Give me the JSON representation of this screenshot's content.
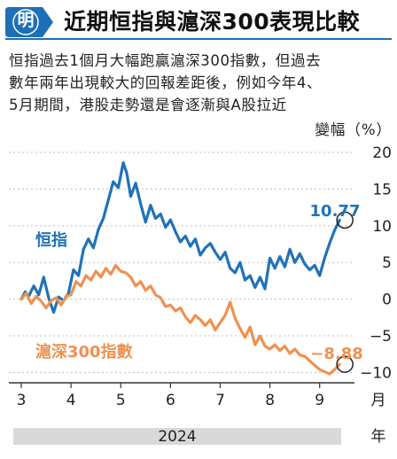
{
  "header": {
    "badge": "明",
    "title": "近期恒指與滬深300表現比較",
    "accent_color": "#1e6fb8"
  },
  "description": [
    "恒指過去1個月大幅跑贏滬深300指數，但過去",
    "數年兩年出現較大的回報差距後，例如今年4、",
    "5月期間，港股走勢還是會逐漸與A股拉近"
  ],
  "chart_data": {
    "type": "line",
    "ylabel": "變幅（%）",
    "ylim": [
      -12,
      20
    ],
    "yticks": [
      "20",
      "15",
      "10",
      "5",
      "0",
      "−5",
      "−10"
    ],
    "ytick_values": [
      20,
      15,
      10,
      5,
      0,
      -5,
      -10
    ],
    "xlabel": "月",
    "x_ticks": [
      "3",
      "4",
      "5",
      "6",
      "7",
      "8",
      "9"
    ],
    "x_tick_months": [
      3,
      4,
      5,
      6,
      7,
      8,
      9
    ],
    "x_range": [
      2.75,
      9.7
    ],
    "year_label": "2024",
    "year_unit": "年",
    "series": [
      {
        "name": "恒指",
        "color": "#1f73b8",
        "end_label": "10.77",
        "end_value": 10.77,
        "x": [
          3.0,
          3.08,
          3.15,
          3.25,
          3.35,
          3.45,
          3.55,
          3.65,
          3.75,
          3.85,
          3.95,
          4.05,
          4.15,
          4.25,
          4.35,
          4.45,
          4.55,
          4.65,
          4.75,
          4.85,
          4.95,
          5.05,
          5.12,
          5.2,
          5.3,
          5.4,
          5.5,
          5.6,
          5.7,
          5.8,
          5.9,
          6.0,
          6.1,
          6.2,
          6.3,
          6.4,
          6.5,
          6.6,
          6.7,
          6.8,
          6.9,
          7.0,
          7.1,
          7.2,
          7.3,
          7.4,
          7.5,
          7.6,
          7.7,
          7.8,
          7.9,
          8.0,
          8.1,
          8.2,
          8.3,
          8.4,
          8.5,
          8.6,
          8.7,
          8.8,
          8.9,
          9.0,
          9.1,
          9.2,
          9.3,
          9.4
        ],
        "y": [
          0.0,
          1.0,
          0.4,
          1.8,
          0.6,
          3.0,
          0.2,
          -1.8,
          0.3,
          -0.2,
          0.8,
          4.0,
          3.2,
          6.8,
          8.2,
          7.0,
          9.5,
          11.0,
          13.5,
          16.0,
          15.2,
          18.6,
          17.2,
          14.0,
          15.8,
          13.0,
          10.5,
          12.8,
          11.0,
          11.6,
          9.8,
          10.8,
          9.2,
          7.8,
          8.6,
          7.2,
          8.2,
          6.0,
          7.0,
          7.6,
          6.4,
          5.4,
          6.4,
          4.2,
          3.6,
          5.0,
          2.6,
          3.2,
          1.6,
          3.0,
          1.4,
          5.6,
          4.2,
          5.8,
          4.4,
          6.8,
          5.0,
          6.2,
          4.8,
          4.0,
          4.6,
          3.2,
          5.6,
          7.6,
          9.4,
          10.77
        ]
      },
      {
        "name": "滬深300指數",
        "color": "#ef9150",
        "end_label": "−8.88",
        "end_value": -8.88,
        "x": [
          3.0,
          3.1,
          3.2,
          3.3,
          3.4,
          3.5,
          3.6,
          3.7,
          3.8,
          3.9,
          4.0,
          4.1,
          4.2,
          4.3,
          4.4,
          4.5,
          4.6,
          4.7,
          4.8,
          4.9,
          5.0,
          5.1,
          5.2,
          5.3,
          5.4,
          5.5,
          5.6,
          5.7,
          5.8,
          5.9,
          6.0,
          6.1,
          6.2,
          6.3,
          6.4,
          6.5,
          6.6,
          6.7,
          6.8,
          6.9,
          7.0,
          7.1,
          7.2,
          7.3,
          7.4,
          7.5,
          7.6,
          7.7,
          7.8,
          7.9,
          8.0,
          8.1,
          8.2,
          8.3,
          8.4,
          8.5,
          8.6,
          8.7,
          8.8,
          8.9,
          9.0,
          9.1,
          9.2,
          9.3,
          9.4
        ],
        "y": [
          0.0,
          0.8,
          -0.6,
          0.4,
          -0.3,
          -1.2,
          -0.2,
          0.2,
          -0.8,
          0.4,
          0.6,
          2.4,
          1.8,
          3.2,
          2.6,
          3.8,
          3.0,
          4.2,
          3.4,
          4.6,
          3.8,
          3.6,
          3.0,
          1.8,
          2.4,
          1.2,
          1.8,
          0.6,
          0.2,
          -1.0,
          -0.8,
          -1.6,
          -1.2,
          -2.4,
          -3.2,
          -2.2,
          -2.8,
          -3.6,
          -2.8,
          -4.2,
          -3.2,
          -2.2,
          -0.4,
          -2.6,
          -4.0,
          -5.2,
          -3.8,
          -6.2,
          -5.0,
          -6.4,
          -6.8,
          -6.2,
          -7.0,
          -6.4,
          -7.4,
          -6.8,
          -7.6,
          -7.8,
          -8.4,
          -9.0,
          -9.6,
          -9.9,
          -10.2,
          -9.6,
          -8.88
        ]
      }
    ]
  }
}
